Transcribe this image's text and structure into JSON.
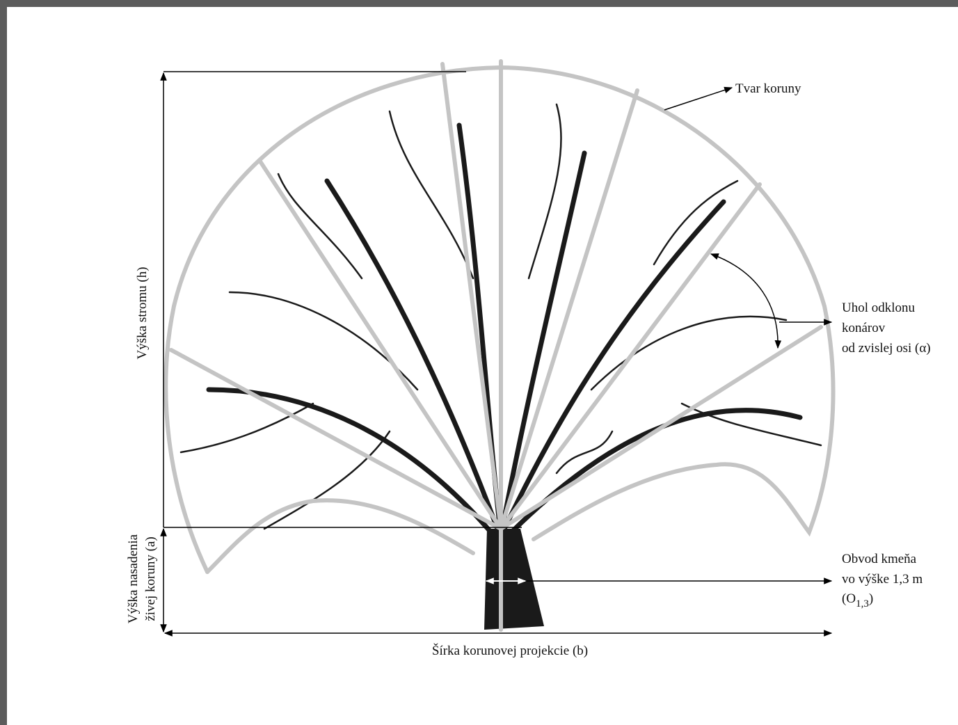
{
  "labels": {
    "crown_shape": "Tvar koruny",
    "branch_angle": [
      "Uhol odklonu",
      "konárov",
      "od zvislej osi (α)"
    ],
    "trunk_circumference": {
      "lines": [
        "Obvod kmeňa",
        "vo výške 1,3 m"
      ],
      "symbol": {
        "prefix": "(O",
        "subscript": "1,3",
        "suffix": ")"
      }
    },
    "tree_height": "Výška stromu (h)",
    "crown_base_height": [
      "Výška nasadenia",
      "živej koruny (a)"
    ],
    "crown_width": "Šírka korunovej projekcie (b)"
  }
}
